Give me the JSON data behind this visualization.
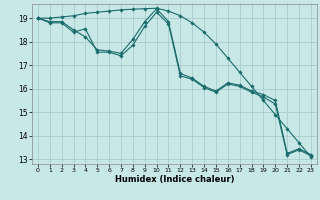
{
  "xlabel": "Humidex (Indice chaleur)",
  "xlim": [
    -0.5,
    23.5
  ],
  "ylim": [
    12.8,
    19.6
  ],
  "yticks": [
    13,
    14,
    15,
    16,
    17,
    18,
    19
  ],
  "xticks": [
    0,
    1,
    2,
    3,
    4,
    5,
    6,
    7,
    8,
    9,
    10,
    11,
    12,
    13,
    14,
    15,
    16,
    17,
    18,
    19,
    20,
    21,
    22,
    23
  ],
  "bg_color": "#c8e8e8",
  "grid_color": "#a8cccc",
  "line_color": "#1a6b6b",
  "line1_x": [
    0,
    1,
    2,
    3,
    4,
    5,
    6,
    7,
    8,
    9,
    10,
    11,
    12,
    13,
    14,
    15,
    16,
    17,
    18,
    19,
    20,
    21,
    22,
    23
  ],
  "line1_y": [
    19.0,
    18.85,
    18.85,
    18.5,
    18.2,
    17.65,
    17.6,
    17.5,
    18.1,
    18.85,
    19.4,
    18.85,
    16.65,
    16.45,
    16.1,
    15.9,
    16.25,
    16.15,
    15.9,
    15.75,
    15.5,
    13.25,
    13.45,
    13.2
  ],
  "line2_x": [
    0,
    1,
    2,
    3,
    4,
    5,
    6,
    7,
    8,
    9,
    10,
    11,
    12,
    13,
    14,
    15,
    16,
    17,
    18,
    19,
    20,
    21,
    22,
    23
  ],
  "line2_y": [
    19.0,
    18.8,
    18.8,
    18.4,
    18.55,
    17.55,
    17.55,
    17.4,
    17.85,
    18.65,
    19.25,
    18.75,
    16.55,
    16.4,
    16.05,
    15.85,
    16.2,
    16.1,
    15.85,
    15.65,
    15.35,
    13.2,
    13.4,
    13.15
  ],
  "line3_x": [
    0,
    1,
    2,
    3,
    4,
    5,
    6,
    7,
    8,
    9,
    10,
    11,
    12,
    13,
    14,
    15,
    16,
    17,
    18,
    19,
    20,
    21,
    22,
    23
  ],
  "line3_y": [
    19.0,
    19.0,
    19.05,
    19.1,
    19.2,
    19.25,
    19.3,
    19.35,
    19.38,
    19.4,
    19.42,
    19.3,
    19.1,
    18.8,
    18.4,
    17.9,
    17.3,
    16.7,
    16.1,
    15.5,
    14.9,
    14.3,
    13.7,
    13.1
  ]
}
